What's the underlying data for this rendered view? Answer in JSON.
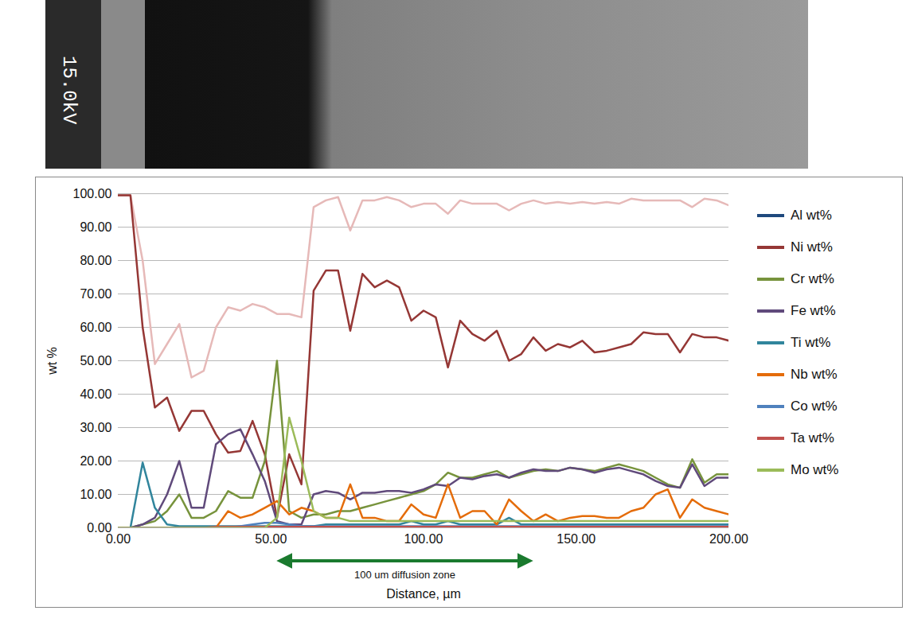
{
  "micrograph": {
    "label": "15.0kV"
  },
  "chart_data": {
    "type": "line",
    "xlabel": "Distance, µm",
    "ylabel": "wt %",
    "x": [
      0,
      4,
      8,
      12,
      16,
      20,
      24,
      28,
      32,
      36,
      40,
      44,
      48,
      52,
      56,
      60,
      64,
      68,
      72,
      76,
      80,
      84,
      88,
      92,
      96,
      100,
      104,
      108,
      112,
      116,
      120,
      124,
      128,
      132,
      136,
      140,
      144,
      148,
      152,
      156,
      160,
      164,
      168,
      172,
      176,
      180,
      184,
      188,
      192,
      196,
      200
    ],
    "xlim": [
      0,
      200
    ],
    "xticks": [
      {
        "value": 0,
        "label": "0.00"
      },
      {
        "value": 50,
        "label": "50.00"
      },
      {
        "value": 100,
        "label": "100.00"
      },
      {
        "value": 150,
        "label": "150.00"
      },
      {
        "value": 200,
        "label": "200.00"
      }
    ],
    "ylim": [
      0,
      100
    ],
    "yticks": [
      {
        "value": 0,
        "label": "0.00"
      },
      {
        "value": 10,
        "label": "10.00"
      },
      {
        "value": 20,
        "label": "20.00"
      },
      {
        "value": 30,
        "label": "30.00"
      },
      {
        "value": 40,
        "label": "40.00"
      },
      {
        "value": 50,
        "label": "50.00"
      },
      {
        "value": 60,
        "label": "60.00"
      },
      {
        "value": 70,
        "label": "70.00"
      },
      {
        "value": 80,
        "label": "80.00"
      },
      {
        "value": 90,
        "label": "90.00"
      },
      {
        "value": 100,
        "label": "100.00"
      }
    ],
    "grid": true,
    "legend": "right",
    "annotations": [
      {
        "text": "100 um diffusion zone",
        "x": [
          53,
          135
        ]
      }
    ],
    "series": [
      {
        "name": null,
        "color": "#e6b9b8",
        "values": [
          99.5,
          99.5,
          80,
          49,
          55,
          61,
          45,
          47,
          60,
          66,
          65,
          67,
          66,
          64,
          64,
          63,
          96,
          98,
          99,
          89,
          98,
          98,
          99,
          98,
          96,
          97,
          97,
          94,
          98,
          97,
          97,
          97,
          95,
          97,
          98,
          97,
          97.5,
          97,
          97.5,
          97,
          97.5,
          97,
          98.5,
          98,
          98,
          98,
          98,
          96,
          98.5,
          98,
          96.5
        ]
      },
      {
        "name": "Al wt%",
        "color": "#1f497d",
        "values": [
          0,
          0,
          0,
          0,
          0,
          0,
          0,
          0,
          0,
          0,
          0.2,
          0.2,
          0.2,
          0.2,
          0.2,
          0.2,
          0.2,
          0.2,
          0.2,
          0.2,
          0.2,
          0.2,
          0.2,
          0.2,
          0.2,
          0.2,
          0.2,
          0.2,
          0.2,
          0.2,
          0.2,
          0.2,
          0.2,
          0.2,
          0.2,
          0.2,
          0.2,
          0.2,
          0.2,
          0.2,
          0.2,
          0.2,
          0.2,
          0.2,
          0.2,
          0.2,
          0.2,
          0.2,
          0.2,
          0.2,
          0.2
        ]
      },
      {
        "name": "Ni wt%",
        "color": "#953735",
        "values": [
          99.5,
          99.5,
          60,
          36,
          39,
          29,
          35,
          35,
          28,
          22.5,
          23,
          32,
          22,
          3,
          22,
          13,
          71,
          77,
          77,
          59,
          76,
          72,
          74,
          72,
          62,
          65,
          63,
          48,
          62,
          58,
          56,
          59,
          50,
          52,
          57,
          53,
          55,
          54,
          56,
          52.5,
          53,
          54,
          55,
          58.5,
          58,
          58,
          52.5,
          58,
          57,
          57,
          56
        ]
      },
      {
        "name": "Cr wt%",
        "color": "#77933c",
        "values": [
          0,
          0,
          1,
          2,
          5,
          10,
          3,
          3,
          5,
          11,
          9,
          9,
          20,
          50,
          5,
          3,
          4,
          4,
          5,
          5,
          6,
          7,
          8,
          9,
          10,
          11,
          13,
          16.5,
          15,
          15,
          16,
          17,
          15,
          16,
          17,
          17.5,
          17,
          18,
          17.5,
          17,
          18,
          19,
          18,
          17,
          15,
          13,
          12,
          20.5,
          13.5,
          16,
          16
        ]
      },
      {
        "name": "Fe wt%",
        "color": "#604a7b",
        "values": [
          0,
          0,
          1,
          3,
          10,
          20,
          6,
          6,
          25,
          28,
          29.5,
          22,
          14,
          2,
          1,
          1,
          10,
          11,
          10.5,
          8.5,
          10.5,
          10.5,
          11,
          11,
          10.5,
          11.5,
          13,
          12.5,
          15,
          14.5,
          15.5,
          16,
          15,
          16.5,
          17.5,
          17,
          17,
          18,
          17.5,
          16.5,
          17.5,
          18,
          17,
          16,
          14,
          12.5,
          12,
          19,
          12.5,
          15,
          15
        ]
      },
      {
        "name": "Ti wt%",
        "color": "#31859c",
        "values": [
          0,
          0,
          19.5,
          6,
          1,
          0.5,
          0.5,
          0.5,
          0.5,
          0.5,
          0.5,
          0.5,
          0.5,
          0.5,
          0.5,
          0.5,
          0.5,
          1,
          1,
          1,
          1,
          1,
          1,
          1,
          2,
          1,
          1,
          2,
          1,
          1,
          1,
          1,
          3,
          1,
          1,
          1,
          1,
          1,
          1,
          1,
          1,
          1,
          1,
          1,
          1,
          1,
          1,
          1,
          1,
          1,
          1
        ]
      },
      {
        "name": "Nb wt%",
        "color": "#e46c0a",
        "values": [
          0,
          0,
          0,
          0,
          0,
          0,
          0,
          0,
          0,
          5,
          3,
          4,
          6,
          8,
          4,
          6,
          5,
          3,
          3,
          13,
          3,
          3,
          2,
          2,
          7,
          4,
          3,
          13,
          3,
          5,
          5,
          1,
          8.5,
          5,
          2,
          4,
          2,
          3,
          3.5,
          3.5,
          3,
          3,
          5,
          6,
          10,
          11.5,
          3,
          8.5,
          6,
          5,
          4
        ]
      },
      {
        "name": "Co wt%",
        "color": "#4f81bd",
        "values": [
          0,
          0,
          0,
          0,
          0,
          0,
          0,
          0,
          0,
          0,
          0.5,
          1,
          1.5,
          1.5,
          1,
          0.5,
          0.5,
          0.5,
          0.5,
          0.5,
          0.5,
          0.5,
          0.5,
          0.5,
          0.5,
          0.5,
          0.5,
          0.5,
          0.5,
          0.5,
          0.5,
          0.5,
          0.5,
          0.5,
          0.5,
          0.5,
          0.5,
          0.5,
          0.5,
          0.5,
          0.5,
          0.5,
          0.5,
          0.5,
          0.5,
          0.5,
          0.5,
          0.5,
          0.5,
          0.5,
          0.5
        ]
      },
      {
        "name": "Ta wt%",
        "color": "#c0504d",
        "values": [
          0,
          0,
          0,
          0,
          0,
          0,
          0,
          0,
          0.3,
          0.3,
          0.3,
          0.3,
          0.3,
          0.3,
          0.3,
          0.3,
          0.3,
          0.3,
          0.3,
          0.3,
          0.3,
          0.3,
          0.3,
          0.3,
          0.3,
          0.3,
          0.3,
          0.3,
          0.3,
          0.3,
          0.3,
          0.3,
          0.3,
          0.3,
          0.3,
          0.3,
          0.3,
          0.3,
          0.3,
          0.3,
          0.3,
          0.3,
          0.3,
          0.3,
          0.3,
          0.3,
          0.3,
          0.3,
          0.3,
          0.3,
          0.3
        ]
      },
      {
        "name": "Mo wt%",
        "color": "#9bbb59",
        "values": [
          0,
          0,
          0,
          0,
          0,
          0,
          0,
          0,
          0,
          0,
          0,
          0,
          0,
          3,
          33,
          20,
          5,
          3,
          3,
          2,
          2,
          2,
          2,
          2,
          2,
          2,
          2,
          2,
          2,
          2,
          2,
          2,
          2,
          2,
          2,
          2,
          2,
          2,
          2,
          2,
          2,
          2,
          2,
          2,
          2,
          2,
          2,
          2,
          2,
          2,
          2
        ]
      }
    ]
  }
}
